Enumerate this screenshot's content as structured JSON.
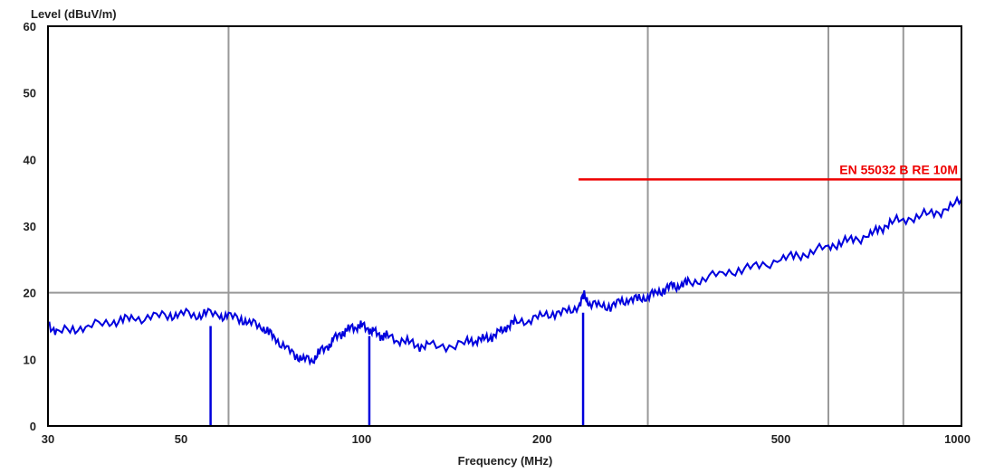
{
  "chart_data": {
    "type": "line",
    "ylabel": "Level (dBuV/m)",
    "xlabel": "Frequency (MHz)",
    "x_scale": "log",
    "xlim": [
      30,
      1000
    ],
    "ylim": [
      0,
      60
    ],
    "x_ticks": [
      30,
      50,
      100,
      200,
      500,
      1000
    ],
    "x_tick_labels": [
      "30",
      "50",
      "100",
      "200",
      "500",
      "1000"
    ],
    "y_ticks": [
      0,
      10,
      20,
      30,
      40,
      50,
      60
    ],
    "y_tick_labels": [
      "0",
      "10",
      "20",
      "30",
      "40",
      "50",
      "60"
    ],
    "grid": {
      "vertical_at": [
        60,
        300,
        600,
        800
      ],
      "horizontal_at": [
        20
      ]
    },
    "limit_line": {
      "name": "EN 55032 B RE 10M",
      "x": [
        230,
        1000
      ],
      "y": [
        37,
        37
      ],
      "color": "#ee0000"
    },
    "trace": {
      "color": "#0000dd",
      "x": [
        30,
        31,
        33,
        35,
        38,
        40,
        42,
        45,
        48,
        50,
        53,
        55,
        58,
        60,
        63,
        65,
        68,
        70,
        72,
        75,
        78,
        80,
        83,
        85,
        88,
        90,
        93,
        95,
        98,
        100,
        103,
        105,
        108,
        110,
        115,
        120,
        125,
        130,
        140,
        150,
        155,
        160,
        165,
        170,
        175,
        180,
        190,
        200,
        210,
        220,
        230,
        235,
        240,
        250,
        260,
        270,
        280,
        290,
        300,
        310,
        320,
        330,
        340,
        350,
        370,
        400,
        430,
        460,
        500,
        530,
        560,
        600,
        630,
        660,
        700,
        730,
        760,
        800,
        850,
        900,
        950,
        1000
      ],
      "y": [
        15.5,
        14,
        14.5,
        15,
        15.5,
        16,
        16,
        16.5,
        16.5,
        17,
        16.5,
        17,
        16.5,
        16.5,
        16,
        15.5,
        15,
        14,
        13,
        11.5,
        10.5,
        10,
        10,
        11,
        12,
        13,
        14,
        14.5,
        15,
        15,
        14.5,
        14,
        13.5,
        13.5,
        13,
        12.5,
        12,
        12,
        12,
        12.5,
        13,
        13,
        13.5,
        14,
        15,
        15.5,
        16,
        16.5,
        17,
        17,
        18,
        19.5,
        18.5,
        18,
        18,
        18.5,
        19,
        19,
        19.5,
        20,
        20.5,
        21,
        21,
        21.5,
        22,
        23,
        23.5,
        24,
        25,
        25.5,
        26,
        27,
        27.5,
        28,
        28.5,
        29.5,
        30.5,
        31,
        31.5,
        32,
        32.5,
        34
      ]
    },
    "spikes": [
      {
        "x": 56,
        "y": 15
      },
      {
        "x": 103,
        "y": 13.5
      },
      {
        "x": 234,
        "y": 17
      }
    ]
  }
}
